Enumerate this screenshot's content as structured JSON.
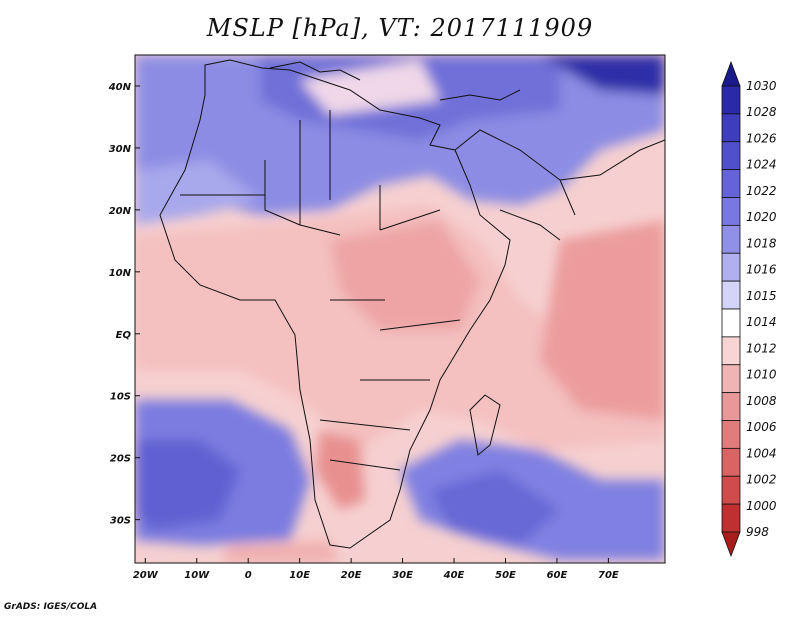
{
  "title": "MSLP [hPa], VT: 2017111909",
  "footer": "GrADS: IGES/COLA",
  "map": {
    "lon_range": [
      -22,
      81
    ],
    "lat_range": [
      -37,
      45
    ],
    "lon_ticks": [
      "20W",
      "10W",
      "0",
      "10E",
      "20E",
      "30E",
      "40E",
      "50E",
      "60E",
      "70E"
    ],
    "lat_ticks": [
      "40N",
      "30N",
      "20N",
      "10N",
      "EQ",
      "10S",
      "20S",
      "30S"
    ]
  },
  "colorbar": {
    "labels": [
      "1030",
      "1028",
      "1026",
      "1024",
      "1022",
      "1020",
      "1018",
      "1016",
      "1015",
      "1014",
      "1012",
      "1010",
      "1008",
      "1006",
      "1004",
      "1002",
      "1000",
      "998"
    ],
    "colors": [
      "#1a1a8c",
      "#2a2aa8",
      "#3d3dbd",
      "#5050cc",
      "#6464d8",
      "#7878e0",
      "#9090e8",
      "#b0b0f0",
      "#d4d4f8",
      "#ffffff",
      "#f8d4d4",
      "#f0b4b4",
      "#e89898",
      "#e07c7c",
      "#d86464",
      "#d04c4c",
      "#c03030",
      "#a81c1c"
    ]
  }
}
